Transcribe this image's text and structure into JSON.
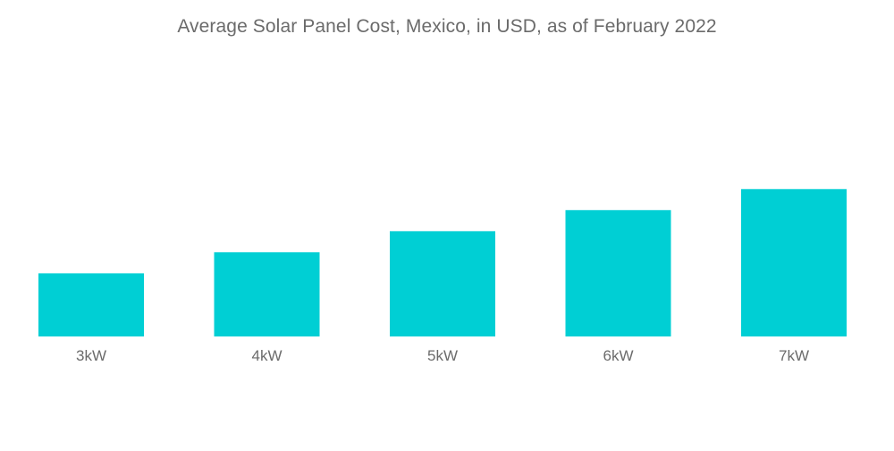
{
  "chart_data": {
    "type": "bar",
    "title": "Average Solar Panel Cost, Mexico, in USD, as of February 2022",
    "categories": [
      "3kW",
      "4kW",
      "5kW",
      "6kW",
      "7kW"
    ],
    "values": [
      3,
      4,
      5,
      6,
      7
    ],
    "xlabel": "",
    "ylabel": "",
    "ylim": [
      0,
      8.5
    ],
    "grid": false,
    "legend": "none",
    "bar_color": "#00cfd4"
  }
}
